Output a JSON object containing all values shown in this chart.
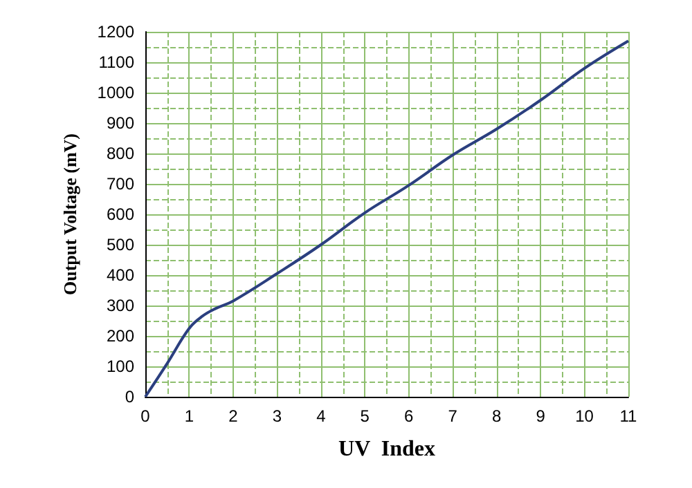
{
  "chart_data": {
    "type": "line",
    "xlabel": "UV  Index",
    "ylabel": "Output Voltage (mV)",
    "x": [
      0,
      0.5,
      1,
      1.3,
      1.6,
      2,
      3,
      4,
      5,
      6,
      7,
      8,
      9,
      10,
      11
    ],
    "series": [
      {
        "color": "#2b3f7f",
        "values": [
          0,
          110,
          225,
          265,
          290,
          315,
          405,
          500,
          605,
          695,
          795,
          880,
          975,
          1080,
          1170
        ]
      }
    ],
    "xlim": [
      0,
      11
    ],
    "xticks": [
      0,
      {
        "value": 0.5,
        "label": null
      },
      1,
      {
        "value": 1.5,
        "label": null
      },
      2,
      {
        "value": 2.5,
        "label": null
      },
      3,
      {
        "value": 3.5,
        "label": null
      },
      4,
      {
        "value": 4.5,
        "label": null
      },
      5,
      {
        "value": 5.5,
        "label": null
      },
      6,
      {
        "value": 6.5,
        "label": null
      },
      7,
      {
        "value": 7.5,
        "label": null
      },
      8,
      {
        "value": 8.5,
        "label": null
      },
      9,
      {
        "value": 9.5,
        "label": null
      },
      10,
      {
        "value": 10.5,
        "label": null
      },
      11
    ],
    "ylim": [
      0,
      1200
    ],
    "yticks": [
      0,
      {
        "value": 50,
        "label": null
      },
      100,
      {
        "value": 150,
        "label": null
      },
      200,
      {
        "value": 250,
        "label": null
      },
      300,
      {
        "value": 350,
        "label": null
      },
      400,
      {
        "value": 450,
        "label": null
      },
      500,
      {
        "value": 550,
        "label": null
      },
      600,
      {
        "value": 650,
        "label": null
      },
      700,
      {
        "value": 750,
        "label": null
      },
      800,
      {
        "value": 850,
        "label": null
      },
      900,
      {
        "value": 950,
        "label": null
      },
      1000,
      {
        "value": 1050,
        "label": null
      },
      1100,
      {
        "value": 1150,
        "label": null
      },
      1200
    ],
    "grid": true,
    "marker": "none",
    "line_style": "solid"
  }
}
